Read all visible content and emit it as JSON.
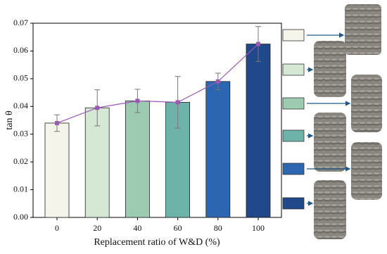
{
  "chart_data": {
    "type": "bar",
    "x_label": "Replacement ratio of W&D (%)",
    "y_label": "tan θ",
    "categories": [
      "0",
      "20",
      "40",
      "60",
      "80",
      "100"
    ],
    "values": [
      0.034,
      0.0395,
      0.042,
      0.0415,
      0.049,
      0.0625
    ],
    "errors": [
      0.003,
      0.0065,
      0.0042,
      0.0093,
      0.003,
      0.0063
    ],
    "colors": [
      "#f4f4ea",
      "#d5e8d4",
      "#9dcbb1",
      "#6db3aa",
      "#2c66b0",
      "#20488a"
    ],
    "line_color": "#9b59b6",
    "ylim": [
      0,
      0.07
    ],
    "yticks": [
      {
        "value": 0,
        "label": "0.00"
      },
      {
        "value": 0.01,
        "label": "0.01"
      },
      {
        "value": 0.02,
        "label": "0.02"
      },
      {
        "value": 0.03,
        "label": "0.03"
      },
      {
        "value": 0.04,
        "label": "0.04"
      },
      {
        "value": 0.05,
        "label": "0.05"
      },
      {
        "value": 0.06,
        "label": "0.06"
      },
      {
        "value": 0.07,
        "label": "0.07"
      }
    ]
  }
}
